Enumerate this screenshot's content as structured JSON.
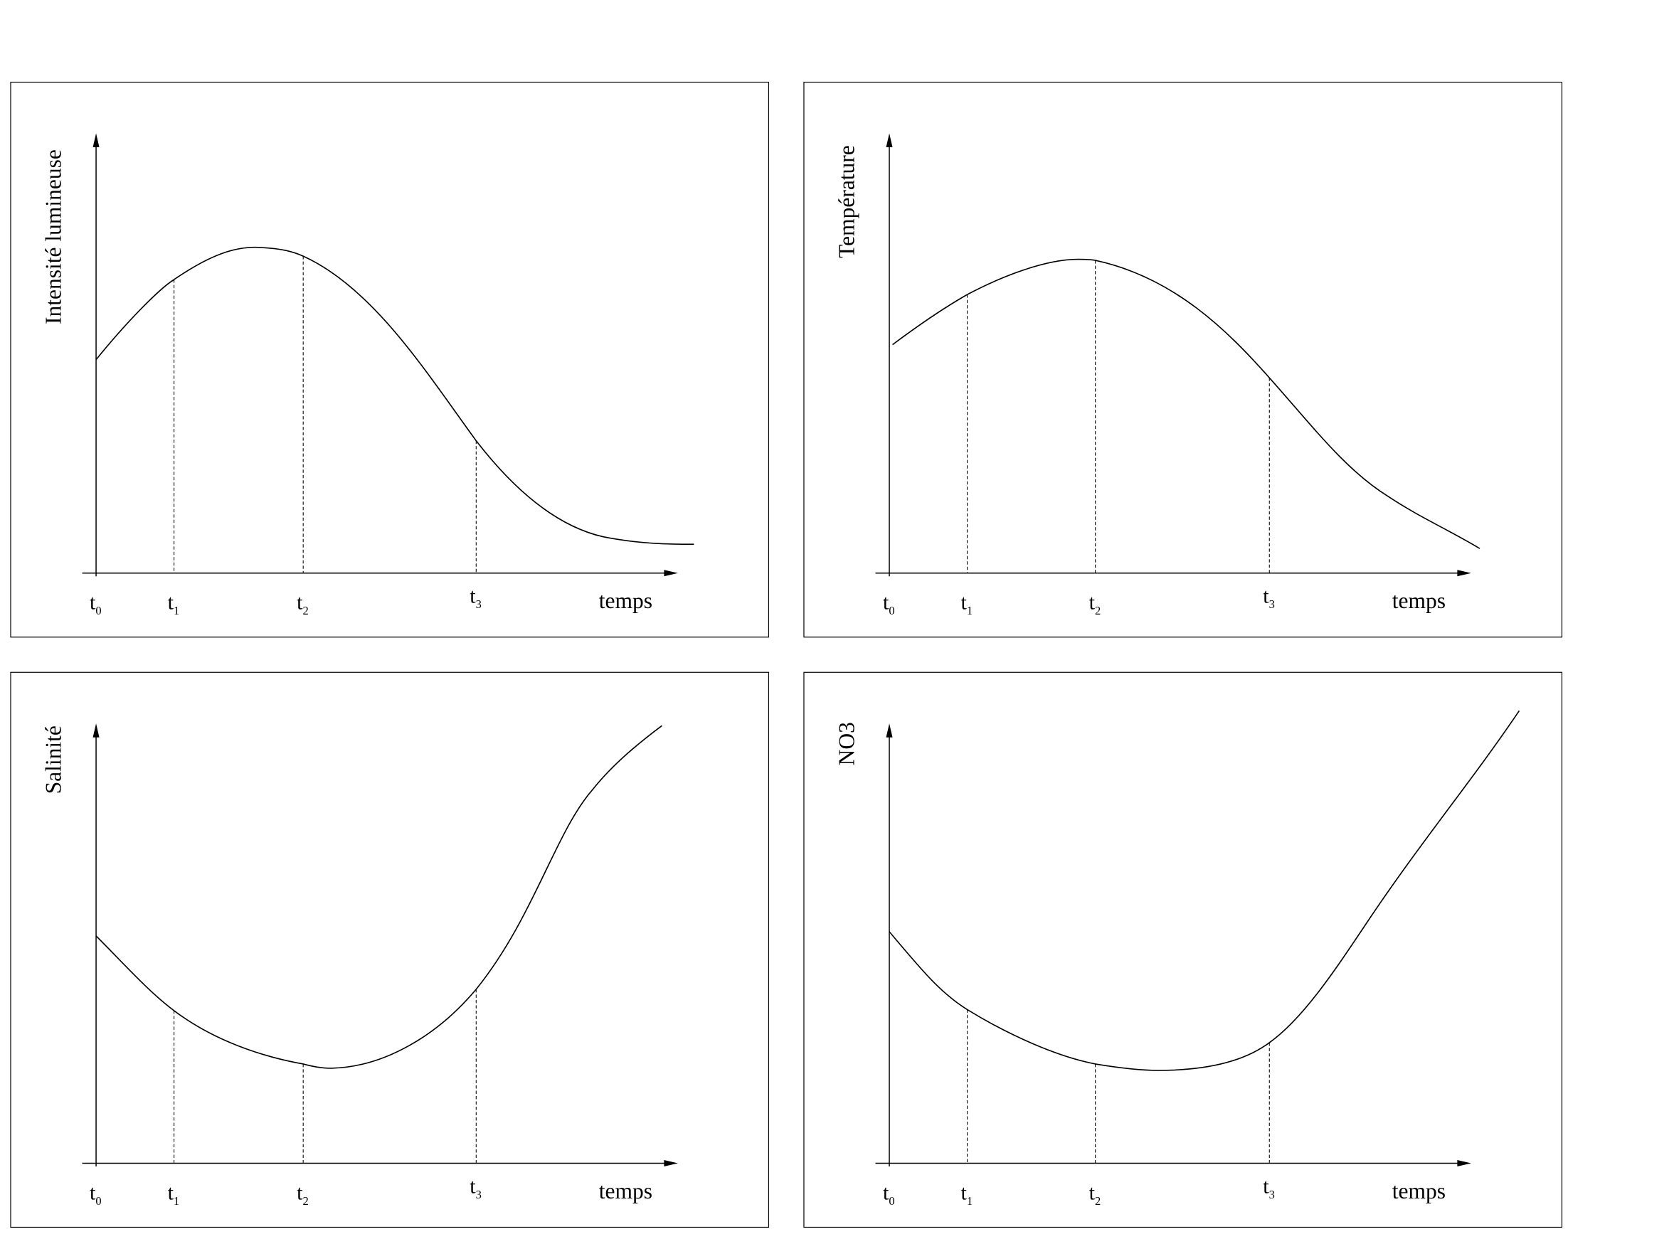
{
  "panels": [
    {
      "y_label": "Intensité lumineuse",
      "x_label": "temps",
      "ticks": [
        {
          "letter": "t",
          "sub": "0"
        },
        {
          "letter": "t",
          "sub": "1"
        },
        {
          "letter": "t",
          "sub": "2"
        },
        {
          "letter": "t",
          "sub": "3"
        }
      ]
    },
    {
      "y_label": "Température",
      "x_label": "temps",
      "ticks": [
        {
          "letter": "t",
          "sub": "0"
        },
        {
          "letter": "t",
          "sub": "1"
        },
        {
          "letter": "t",
          "sub": "2"
        },
        {
          "letter": "t",
          "sub": "3"
        }
      ]
    },
    {
      "y_label": "Salinité",
      "x_label": "temps",
      "ticks": [
        {
          "letter": "t",
          "sub": "0"
        },
        {
          "letter": "t",
          "sub": "1"
        },
        {
          "letter": "t",
          "sub": "2"
        },
        {
          "letter": "t",
          "sub": "3"
        }
      ]
    },
    {
      "y_label": "NO3",
      "x_label": "temps",
      "ticks": [
        {
          "letter": "t",
          "sub": "0"
        },
        {
          "letter": "t",
          "sub": "1"
        },
        {
          "letter": "t",
          "sub": "2"
        },
        {
          "letter": "t",
          "sub": "3"
        }
      ]
    }
  ]
}
